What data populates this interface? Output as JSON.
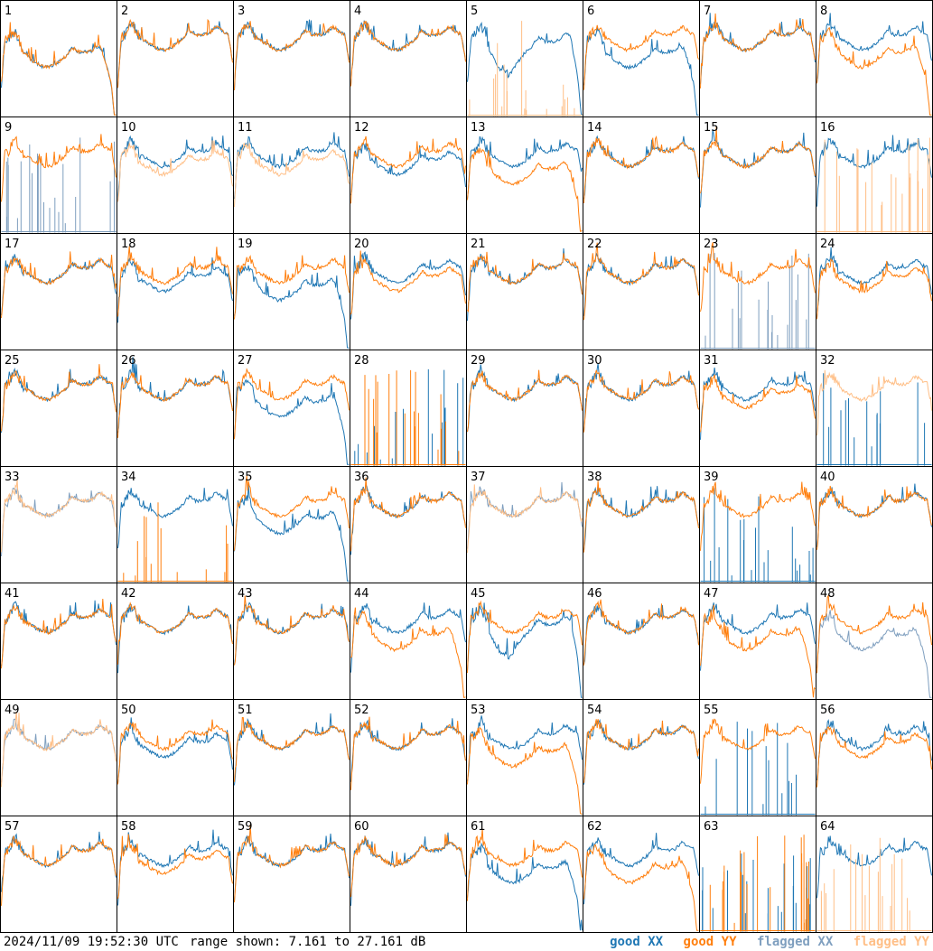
{
  "timestamp": "2024/11/09 19:52:30 UTC",
  "range_text": "range shown: 7.161 to 27.161 dB",
  "legend": [
    {
      "label": "good XX",
      "color": "#1f77b4"
    },
    {
      "label": "good YY",
      "color": "#ff7f0e"
    },
    {
      "label": "flagged XX",
      "color": "#7f9fbf"
    },
    {
      "label": "flagged YY",
      "color": "#ffbf87"
    }
  ],
  "chart_data": {
    "type": "line",
    "grid": {
      "rows": 8,
      "cols": 8
    },
    "ylim": [
      7.161,
      27.161
    ],
    "tiles": [
      {
        "label": "1",
        "xx": "drop",
        "yy": "drop",
        "xxf": false,
        "yyf": false
      },
      {
        "label": "2",
        "xx": "normal",
        "yy": "normal",
        "xxf": false,
        "yyf": false
      },
      {
        "label": "3",
        "xx": "normal",
        "yy": "normal",
        "xxf": false,
        "yyf": false
      },
      {
        "label": "4",
        "xx": "normal",
        "yy": "normal",
        "xxf": false,
        "yyf": false
      },
      {
        "label": "5",
        "xx": "dip",
        "yy": "spikes",
        "xxf": false,
        "yyf": true
      },
      {
        "label": "6",
        "xx": "drop",
        "yy": "normal",
        "xxf": false,
        "yyf": false
      },
      {
        "label": "7",
        "xx": "normal",
        "yy": "normal",
        "xxf": false,
        "yyf": false
      },
      {
        "label": "8",
        "xx": "normal",
        "yy": "drop",
        "xxf": false,
        "yyf": false
      },
      {
        "label": "9",
        "xx": "spikes",
        "yy": "normal",
        "xxf": true,
        "yyf": false
      },
      {
        "label": "10",
        "xx": "normal",
        "yy": "low",
        "xxf": false,
        "yyf": true
      },
      {
        "label": "11",
        "xx": "normal",
        "yy": "low",
        "xxf": false,
        "yyf": true
      },
      {
        "label": "12",
        "xx": "low",
        "yy": "normal",
        "xxf": false,
        "yyf": false
      },
      {
        "label": "13",
        "xx": "normal",
        "yy": "drop",
        "xxf": false,
        "yyf": false
      },
      {
        "label": "14",
        "xx": "normal",
        "yy": "normal",
        "xxf": false,
        "yyf": false
      },
      {
        "label": "15",
        "xx": "normal",
        "yy": "normal",
        "xxf": false,
        "yyf": false
      },
      {
        "label": "16",
        "xx": "normal",
        "yy": "spikes",
        "xxf": false,
        "yyf": true
      },
      {
        "label": "17",
        "xx": "normal",
        "yy": "normal",
        "xxf": false,
        "yyf": false
      },
      {
        "label": "18",
        "xx": "low",
        "yy": "normal",
        "xxf": false,
        "yyf": false
      },
      {
        "label": "19",
        "xx": "drop",
        "yy": "normal",
        "xxf": false,
        "yyf": false
      },
      {
        "label": "20",
        "xx": "normal",
        "yy": "low",
        "xxf": false,
        "yyf": false
      },
      {
        "label": "21",
        "xx": "normal",
        "yy": "normal",
        "xxf": false,
        "yyf": false
      },
      {
        "label": "22",
        "xx": "normal",
        "yy": "normal",
        "xxf": false,
        "yyf": false
      },
      {
        "label": "23",
        "xx": "spikes",
        "yy": "normal",
        "xxf": true,
        "yyf": false
      },
      {
        "label": "24",
        "xx": "normal",
        "yy": "low",
        "xxf": false,
        "yyf": false
      },
      {
        "label": "25",
        "xx": "normal",
        "yy": "normal",
        "xxf": false,
        "yyf": false
      },
      {
        "label": "26",
        "xx": "normal",
        "yy": "normal",
        "xxf": false,
        "yyf": false
      },
      {
        "label": "27",
        "xx": "drop",
        "yy": "normal",
        "xxf": false,
        "yyf": false
      },
      {
        "label": "28",
        "xx": "spikes",
        "yy": "spikes",
        "xxf": false,
        "yyf": false
      },
      {
        "label": "29",
        "xx": "normal",
        "yy": "normal",
        "xxf": false,
        "yyf": false
      },
      {
        "label": "30",
        "xx": "normal",
        "yy": "normal",
        "xxf": false,
        "yyf": false
      },
      {
        "label": "31",
        "xx": "normal",
        "yy": "low",
        "xxf": false,
        "yyf": false
      },
      {
        "label": "32",
        "xx": "spikes",
        "yy": "normal",
        "xxf": false,
        "yyf": true
      },
      {
        "label": "33",
        "xx": "normal",
        "yy": "normal",
        "xxf": true,
        "yyf": true
      },
      {
        "label": "34",
        "xx": "normal",
        "yy": "spikes",
        "xxf": false,
        "yyf": false
      },
      {
        "label": "35",
        "xx": "drop",
        "yy": "normal",
        "xxf": false,
        "yyf": false
      },
      {
        "label": "36",
        "xx": "normal",
        "yy": "normal",
        "xxf": false,
        "yyf": false
      },
      {
        "label": "37",
        "xx": "normal",
        "yy": "normal",
        "xxf": true,
        "yyf": true
      },
      {
        "label": "38",
        "xx": "normal",
        "yy": "normal",
        "xxf": false,
        "yyf": false
      },
      {
        "label": "39",
        "xx": "spikes",
        "yy": "normal",
        "xxf": false,
        "yyf": false
      },
      {
        "label": "40",
        "xx": "normal",
        "yy": "normal",
        "xxf": false,
        "yyf": false
      },
      {
        "label": "41",
        "xx": "normal",
        "yy": "normal",
        "xxf": false,
        "yyf": false
      },
      {
        "label": "42",
        "xx": "normal",
        "yy": "normal",
        "xxf": false,
        "yyf": false
      },
      {
        "label": "43",
        "xx": "normal",
        "yy": "normal",
        "xxf": false,
        "yyf": false
      },
      {
        "label": "44",
        "xx": "normal",
        "yy": "drop",
        "xxf": false,
        "yyf": false
      },
      {
        "label": "45",
        "xx": "dip",
        "yy": "normal",
        "xxf": false,
        "yyf": false
      },
      {
        "label": "46",
        "xx": "normal",
        "yy": "normal",
        "xxf": false,
        "yyf": false
      },
      {
        "label": "47",
        "xx": "normal",
        "yy": "drop",
        "xxf": false,
        "yyf": false
      },
      {
        "label": "48",
        "xx": "drop",
        "yy": "normal",
        "xxf": true,
        "yyf": false
      },
      {
        "label": "49",
        "xx": "normal",
        "yy": "normal",
        "xxf": true,
        "yyf": true
      },
      {
        "label": "50",
        "xx": "low",
        "yy": "normal",
        "xxf": false,
        "yyf": false
      },
      {
        "label": "51",
        "xx": "normal",
        "yy": "normal",
        "xxf": false,
        "yyf": false
      },
      {
        "label": "52",
        "xx": "normal",
        "yy": "normal",
        "xxf": false,
        "yyf": false
      },
      {
        "label": "53",
        "xx": "normal",
        "yy": "drop",
        "xxf": false,
        "yyf": false
      },
      {
        "label": "54",
        "xx": "normal",
        "yy": "normal",
        "xxf": false,
        "yyf": false
      },
      {
        "label": "55",
        "xx": "spikes",
        "yy": "normal",
        "xxf": false,
        "yyf": false
      },
      {
        "label": "56",
        "xx": "normal",
        "yy": "low",
        "xxf": false,
        "yyf": false
      },
      {
        "label": "57",
        "xx": "normal",
        "yy": "normal",
        "xxf": false,
        "yyf": false
      },
      {
        "label": "58",
        "xx": "normal",
        "yy": "low",
        "xxf": false,
        "yyf": false
      },
      {
        "label": "59",
        "xx": "normal",
        "yy": "normal",
        "xxf": false,
        "yyf": false
      },
      {
        "label": "60",
        "xx": "normal",
        "yy": "normal",
        "xxf": false,
        "yyf": false
      },
      {
        "label": "61",
        "xx": "drop",
        "yy": "normal",
        "xxf": false,
        "yyf": false
      },
      {
        "label": "62",
        "xx": "normal",
        "yy": "drop",
        "xxf": false,
        "yyf": false
      },
      {
        "label": "63",
        "xx": "spikes",
        "yy": "spikes",
        "xxf": false,
        "yyf": false
      },
      {
        "label": "64",
        "xx": "normal",
        "yy": "spikes",
        "xxf": false,
        "yyf": true
      }
    ]
  }
}
